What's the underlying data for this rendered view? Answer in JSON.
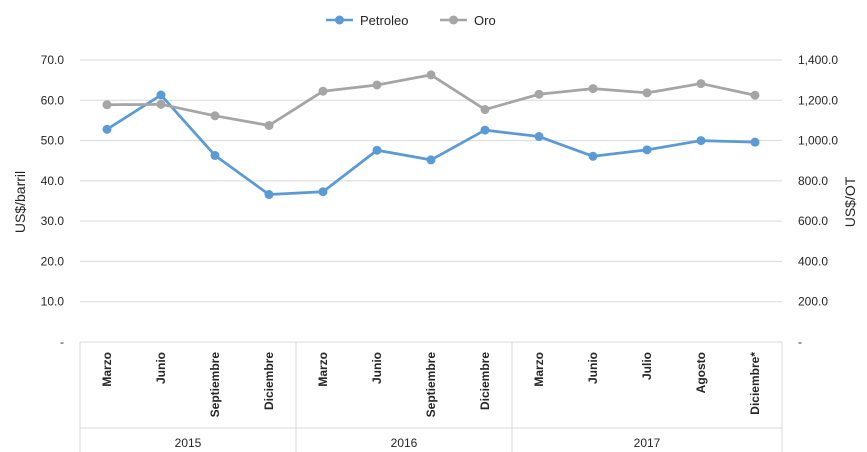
{
  "chart_data": {
    "type": "line",
    "categories": [
      "Marzo",
      "Junio",
      "Septiembre",
      "Diciembre",
      "Marzo",
      "Junio",
      "Septiembre",
      "Diciembre",
      "Marzo",
      "Junio",
      "Julio",
      "Agosto",
      "Diciembre*"
    ],
    "groups": [
      {
        "label": "2015",
        "start": 0,
        "end": 3
      },
      {
        "label": "2016",
        "start": 4,
        "end": 7
      },
      {
        "label": "2017",
        "start": 8,
        "end": 12
      }
    ],
    "series": [
      {
        "name": "Petroleo",
        "axis": "left",
        "color": "#5B9BD5",
        "values": [
          52.8,
          61.3,
          46.3,
          36.6,
          37.3,
          47.6,
          45.2,
          52.6,
          51.0,
          46.1,
          47.7,
          50.0,
          49.6
        ]
      },
      {
        "name": "Oro",
        "axis": "right",
        "color": "#A5A5A5",
        "values": [
          1178,
          1180,
          1123,
          1075,
          1245,
          1276,
          1326,
          1154,
          1230,
          1258,
          1237,
          1283,
          1225
        ]
      }
    ],
    "ylabel": "US$/barril",
    "ylabel_right": "US$/OT",
    "ylim": [
      0,
      70
    ],
    "ylim_right": [
      0,
      1400
    ],
    "yticks": [
      "-",
      "10.0",
      "20.0",
      "30.0",
      "40.0",
      "50.0",
      "60.0",
      "70.0"
    ],
    "yticks_right": [
      "-",
      "200.0",
      "400.0",
      "600.0",
      "800.0",
      "1,000.0",
      "1,200.0",
      "1,400.0"
    ],
    "grid": true,
    "legend": "top-center"
  }
}
